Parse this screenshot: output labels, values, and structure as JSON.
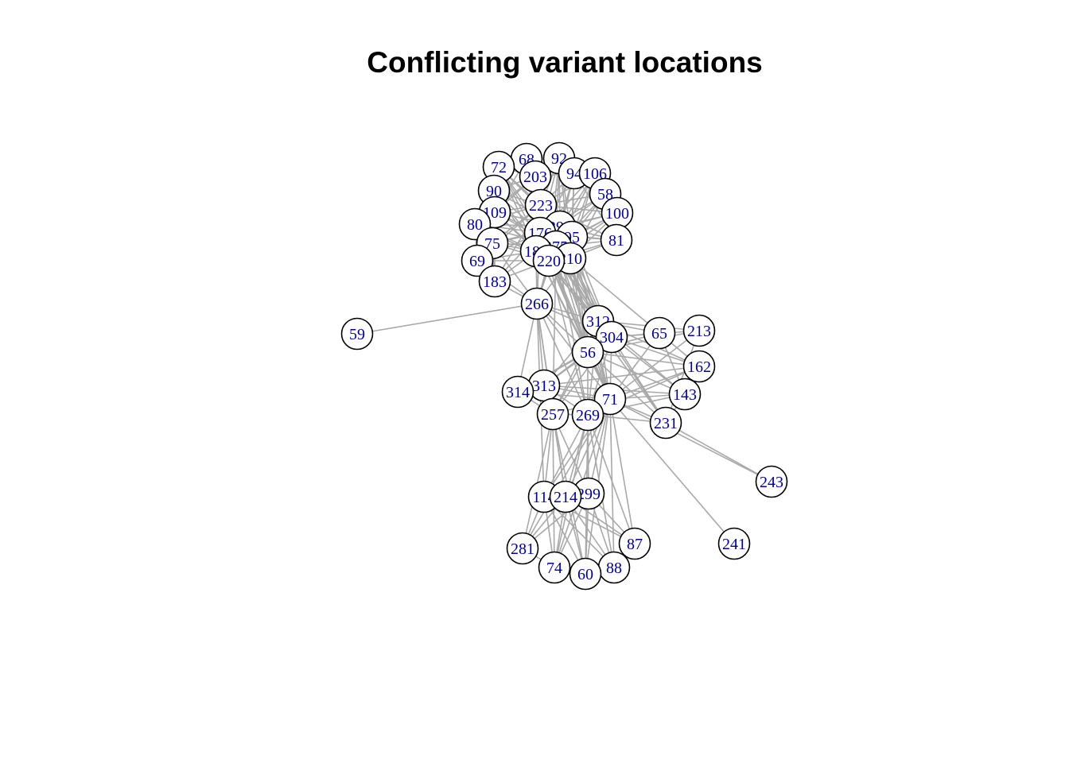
{
  "title": "Conflicting variant locations",
  "colors": {
    "edge": "#a9a9a9",
    "node_fill": "#ffffff",
    "node_stroke": "#000000",
    "label": "#00008b"
  },
  "nodes": [
    {
      "id": "68",
      "label": "68"
    },
    {
      "id": "92",
      "label": "92"
    },
    {
      "id": "72",
      "label": "72"
    },
    {
      "id": "203",
      "label": "203"
    },
    {
      "id": "94",
      "label": "94"
    },
    {
      "id": "106",
      "label": "106"
    },
    {
      "id": "90",
      "label": "90"
    },
    {
      "id": "58",
      "label": "58"
    },
    {
      "id": "223",
      "label": "223"
    },
    {
      "id": "100",
      "label": "100"
    },
    {
      "id": "109",
      "label": "109"
    },
    {
      "id": "80",
      "label": "80"
    },
    {
      "id": "290",
      "label": "290"
    },
    {
      "id": "176",
      "label": "176"
    },
    {
      "id": "95",
      "label": "95"
    },
    {
      "id": "81",
      "label": "81"
    },
    {
      "id": "75",
      "label": "75"
    },
    {
      "id": "275",
      "label": "275"
    },
    {
      "id": "184",
      "label": "184"
    },
    {
      "id": "210",
      "label": "210"
    },
    {
      "id": "220",
      "label": "220"
    },
    {
      "id": "69",
      "label": "69"
    },
    {
      "id": "183",
      "label": "183"
    },
    {
      "id": "266",
      "label": "266"
    },
    {
      "id": "59",
      "label": "59"
    },
    {
      "id": "312",
      "label": "312"
    },
    {
      "id": "213",
      "label": "213"
    },
    {
      "id": "65",
      "label": "65"
    },
    {
      "id": "304",
      "label": "304"
    },
    {
      "id": "56",
      "label": "56"
    },
    {
      "id": "162",
      "label": "162"
    },
    {
      "id": "313",
      "label": "313"
    },
    {
      "id": "314",
      "label": "314"
    },
    {
      "id": "143",
      "label": "143"
    },
    {
      "id": "71",
      "label": "71"
    },
    {
      "id": "257",
      "label": "257"
    },
    {
      "id": "269",
      "label": "269"
    },
    {
      "id": "231",
      "label": "231"
    },
    {
      "id": "243",
      "label": "243"
    },
    {
      "id": "299",
      "label": "299"
    },
    {
      "id": "114",
      "label": "114"
    },
    {
      "id": "214",
      "label": "214"
    },
    {
      "id": "87",
      "label": "87"
    },
    {
      "id": "241",
      "label": "241"
    },
    {
      "id": "281",
      "label": "281"
    },
    {
      "id": "74",
      "label": "74"
    },
    {
      "id": "88",
      "label": "88"
    },
    {
      "id": "60",
      "label": "60"
    }
  ],
  "edges": [
    [
      "68",
      "203"
    ],
    [
      "68",
      "223"
    ],
    [
      "68",
      "176"
    ],
    [
      "68",
      "290"
    ],
    [
      "68",
      "94"
    ],
    [
      "68",
      "72"
    ],
    [
      "68",
      "109"
    ],
    [
      "68",
      "275"
    ],
    [
      "68",
      "184"
    ],
    [
      "68",
      "220"
    ],
    [
      "92",
      "203"
    ],
    [
      "92",
      "223"
    ],
    [
      "92",
      "290"
    ],
    [
      "92",
      "95"
    ],
    [
      "92",
      "94"
    ],
    [
      "92",
      "106"
    ],
    [
      "92",
      "176"
    ],
    [
      "92",
      "210"
    ],
    [
      "92",
      "275"
    ],
    [
      "92",
      "220"
    ],
    [
      "72",
      "203"
    ],
    [
      "72",
      "223"
    ],
    [
      "72",
      "176"
    ],
    [
      "72",
      "184"
    ],
    [
      "72",
      "290"
    ],
    [
      "72",
      "90"
    ],
    [
      "72",
      "220"
    ],
    [
      "72",
      "275"
    ],
    [
      "203",
      "223"
    ],
    [
      "203",
      "176"
    ],
    [
      "203",
      "290"
    ],
    [
      "203",
      "275"
    ],
    [
      "203",
      "184"
    ],
    [
      "203",
      "220"
    ],
    [
      "203",
      "94"
    ],
    [
      "203",
      "109"
    ],
    [
      "203",
      "90"
    ],
    [
      "203",
      "80"
    ],
    [
      "203",
      "210"
    ],
    [
      "94",
      "223"
    ],
    [
      "94",
      "290"
    ],
    [
      "94",
      "95"
    ],
    [
      "94",
      "176"
    ],
    [
      "94",
      "106"
    ],
    [
      "94",
      "58"
    ],
    [
      "94",
      "100"
    ],
    [
      "94",
      "81"
    ],
    [
      "94",
      "275"
    ],
    [
      "94",
      "210"
    ],
    [
      "94",
      "220"
    ],
    [
      "106",
      "223"
    ],
    [
      "106",
      "290"
    ],
    [
      "106",
      "95"
    ],
    [
      "106",
      "176"
    ],
    [
      "106",
      "58"
    ],
    [
      "106",
      "100"
    ],
    [
      "106",
      "81"
    ],
    [
      "106",
      "210"
    ],
    [
      "106",
      "275"
    ],
    [
      "90",
      "223"
    ],
    [
      "90",
      "176"
    ],
    [
      "90",
      "184"
    ],
    [
      "90",
      "109"
    ],
    [
      "90",
      "290"
    ],
    [
      "90",
      "80"
    ],
    [
      "90",
      "75"
    ],
    [
      "90",
      "220"
    ],
    [
      "58",
      "223"
    ],
    [
      "58",
      "290"
    ],
    [
      "58",
      "95"
    ],
    [
      "58",
      "176"
    ],
    [
      "58",
      "100"
    ],
    [
      "58",
      "81"
    ],
    [
      "58",
      "275"
    ],
    [
      "58",
      "210"
    ],
    [
      "223",
      "290"
    ],
    [
      "223",
      "176"
    ],
    [
      "223",
      "95"
    ],
    [
      "223",
      "275"
    ],
    [
      "223",
      "184"
    ],
    [
      "223",
      "220"
    ],
    [
      "223",
      "210"
    ],
    [
      "223",
      "109"
    ],
    [
      "223",
      "80"
    ],
    [
      "223",
      "75"
    ],
    [
      "223",
      "100"
    ],
    [
      "223",
      "81"
    ],
    [
      "223",
      "69"
    ],
    [
      "223",
      "183"
    ],
    [
      "223",
      "266"
    ],
    [
      "100",
      "290"
    ],
    [
      "100",
      "95"
    ],
    [
      "100",
      "176"
    ],
    [
      "100",
      "210"
    ],
    [
      "100",
      "275"
    ],
    [
      "100",
      "81"
    ],
    [
      "100",
      "220"
    ],
    [
      "109",
      "176"
    ],
    [
      "109",
      "290"
    ],
    [
      "109",
      "184"
    ],
    [
      "109",
      "275"
    ],
    [
      "109",
      "220"
    ],
    [
      "109",
      "80"
    ],
    [
      "109",
      "75"
    ],
    [
      "109",
      "69"
    ],
    [
      "109",
      "183"
    ],
    [
      "80",
      "176"
    ],
    [
      "80",
      "184"
    ],
    [
      "80",
      "220"
    ],
    [
      "80",
      "290"
    ],
    [
      "80",
      "75"
    ],
    [
      "80",
      "69"
    ],
    [
      "80",
      "275"
    ],
    [
      "290",
      "176"
    ],
    [
      "290",
      "95"
    ],
    [
      "290",
      "275"
    ],
    [
      "290",
      "184"
    ],
    [
      "290",
      "210"
    ],
    [
      "290",
      "220"
    ],
    [
      "290",
      "81"
    ],
    [
      "290",
      "75"
    ],
    [
      "290",
      "266"
    ],
    [
      "290",
      "312"
    ],
    [
      "290",
      "304"
    ],
    [
      "290",
      "56"
    ],
    [
      "290",
      "71"
    ],
    [
      "176",
      "95"
    ],
    [
      "176",
      "275"
    ],
    [
      "176",
      "184"
    ],
    [
      "176",
      "210"
    ],
    [
      "176",
      "220"
    ],
    [
      "176",
      "75"
    ],
    [
      "176",
      "69"
    ],
    [
      "176",
      "183"
    ],
    [
      "176",
      "81"
    ],
    [
      "176",
      "266"
    ],
    [
      "176",
      "312"
    ],
    [
      "176",
      "304"
    ],
    [
      "176",
      "56"
    ],
    [
      "176",
      "71"
    ],
    [
      "95",
      "275"
    ],
    [
      "95",
      "210"
    ],
    [
      "95",
      "220"
    ],
    [
      "95",
      "81"
    ],
    [
      "95",
      "184"
    ],
    [
      "95",
      "312"
    ],
    [
      "95",
      "304"
    ],
    [
      "95",
      "56"
    ],
    [
      "95",
      "71"
    ],
    [
      "81",
      "275"
    ],
    [
      "81",
      "210"
    ],
    [
      "81",
      "220"
    ],
    [
      "75",
      "184"
    ],
    [
      "75",
      "220"
    ],
    [
      "75",
      "275"
    ],
    [
      "75",
      "69"
    ],
    [
      "75",
      "183"
    ],
    [
      "75",
      "290"
    ],
    [
      "75",
      "266"
    ],
    [
      "275",
      "184"
    ],
    [
      "275",
      "220"
    ],
    [
      "275",
      "210"
    ],
    [
      "275",
      "266"
    ],
    [
      "275",
      "312"
    ],
    [
      "275",
      "304"
    ],
    [
      "275",
      "56"
    ],
    [
      "275",
      "71"
    ],
    [
      "275",
      "269"
    ],
    [
      "275",
      "257"
    ],
    [
      "184",
      "220"
    ],
    [
      "184",
      "210"
    ],
    [
      "184",
      "69"
    ],
    [
      "184",
      "183"
    ],
    [
      "184",
      "266"
    ],
    [
      "184",
      "312"
    ],
    [
      "184",
      "304"
    ],
    [
      "184",
      "56"
    ],
    [
      "184",
      "71"
    ],
    [
      "220",
      "210"
    ],
    [
      "220",
      "69"
    ],
    [
      "220",
      "183"
    ],
    [
      "220",
      "266"
    ],
    [
      "220",
      "312"
    ],
    [
      "220",
      "304"
    ],
    [
      "220",
      "56"
    ],
    [
      "220",
      "71"
    ],
    [
      "220",
      "269"
    ],
    [
      "220",
      "231"
    ],
    [
      "210",
      "266"
    ],
    [
      "210",
      "312"
    ],
    [
      "210",
      "304"
    ],
    [
      "210",
      "56"
    ],
    [
      "210",
      "71"
    ],
    [
      "210",
      "65"
    ],
    [
      "69",
      "183"
    ],
    [
      "69",
      "266"
    ],
    [
      "183",
      "266"
    ],
    [
      "266",
      "59"
    ],
    [
      "266",
      "312"
    ],
    [
      "266",
      "304"
    ],
    [
      "266",
      "56"
    ],
    [
      "266",
      "71"
    ],
    [
      "266",
      "313"
    ],
    [
      "266",
      "314"
    ],
    [
      "266",
      "257"
    ],
    [
      "266",
      "269"
    ],
    [
      "266",
      "114"
    ],
    [
      "266",
      "214"
    ],
    [
      "312",
      "304"
    ],
    [
      "312",
      "56"
    ],
    [
      "312",
      "65"
    ],
    [
      "312",
      "213"
    ],
    [
      "312",
      "162"
    ],
    [
      "312",
      "143"
    ],
    [
      "312",
      "71"
    ],
    [
      "312",
      "269"
    ],
    [
      "312",
      "231"
    ],
    [
      "312",
      "313"
    ],
    [
      "312",
      "257"
    ],
    [
      "304",
      "56"
    ],
    [
      "304",
      "65"
    ],
    [
      "304",
      "213"
    ],
    [
      "304",
      "162"
    ],
    [
      "304",
      "143"
    ],
    [
      "304",
      "71"
    ],
    [
      "304",
      "231"
    ],
    [
      "304",
      "313"
    ],
    [
      "304",
      "257"
    ],
    [
      "304",
      "269"
    ],
    [
      "304",
      "314"
    ],
    [
      "56",
      "65"
    ],
    [
      "56",
      "213"
    ],
    [
      "56",
      "162"
    ],
    [
      "56",
      "143"
    ],
    [
      "56",
      "71"
    ],
    [
      "56",
      "269"
    ],
    [
      "56",
      "231"
    ],
    [
      "56",
      "257"
    ],
    [
      "56",
      "313"
    ],
    [
      "56",
      "314"
    ],
    [
      "65",
      "162"
    ],
    [
      "65",
      "143"
    ],
    [
      "65",
      "71"
    ],
    [
      "213",
      "71"
    ],
    [
      "213",
      "231"
    ],
    [
      "162",
      "269"
    ],
    [
      "162",
      "71"
    ],
    [
      "313",
      "314"
    ],
    [
      "313",
      "257"
    ],
    [
      "313",
      "269"
    ],
    [
      "313",
      "71"
    ],
    [
      "313",
      "162"
    ],
    [
      "313",
      "143"
    ],
    [
      "314",
      "257"
    ],
    [
      "314",
      "71"
    ],
    [
      "71",
      "257"
    ],
    [
      "71",
      "269"
    ],
    [
      "71",
      "143"
    ],
    [
      "71",
      "231"
    ],
    [
      "71",
      "243"
    ],
    [
      "71",
      "241"
    ],
    [
      "71",
      "299"
    ],
    [
      "71",
      "114"
    ],
    [
      "71",
      "214"
    ],
    [
      "71",
      "87"
    ],
    [
      "71",
      "88"
    ],
    [
      "71",
      "60"
    ],
    [
      "71",
      "74"
    ],
    [
      "71",
      "281"
    ],
    [
      "257",
      "269"
    ],
    [
      "257",
      "114"
    ],
    [
      "257",
      "214"
    ],
    [
      "257",
      "299"
    ],
    [
      "257",
      "281"
    ],
    [
      "257",
      "74"
    ],
    [
      "257",
      "60"
    ],
    [
      "269",
      "114"
    ],
    [
      "269",
      "214"
    ],
    [
      "269",
      "299"
    ],
    [
      "269",
      "87"
    ],
    [
      "269",
      "88"
    ],
    [
      "269",
      "60"
    ],
    [
      "269",
      "74"
    ],
    [
      "269",
      "231"
    ],
    [
      "269",
      "143"
    ],
    [
      "231",
      "243"
    ],
    [
      "231",
      "143"
    ],
    [
      "299",
      "114"
    ],
    [
      "299",
      "214"
    ],
    [
      "299",
      "87"
    ],
    [
      "299",
      "88"
    ],
    [
      "299",
      "60"
    ],
    [
      "299",
      "74"
    ],
    [
      "299",
      "281"
    ],
    [
      "114",
      "214"
    ],
    [
      "114",
      "281"
    ],
    [
      "114",
      "74"
    ],
    [
      "114",
      "60"
    ],
    [
      "114",
      "88"
    ],
    [
      "114",
      "87"
    ],
    [
      "214",
      "281"
    ],
    [
      "214",
      "74"
    ],
    [
      "214",
      "60"
    ],
    [
      "214",
      "88"
    ],
    [
      "214",
      "87"
    ],
    [
      "281",
      "74"
    ],
    [
      "74",
      "60"
    ],
    [
      "60",
      "88"
    ],
    [
      "88",
      "87"
    ]
  ]
}
